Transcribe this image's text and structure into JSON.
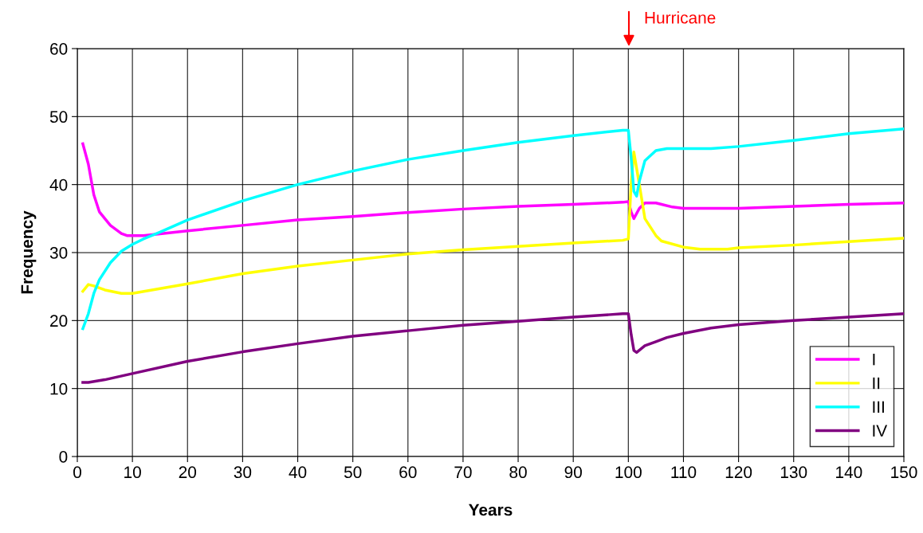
{
  "chart_data": {
    "type": "line",
    "xlabel": "Years",
    "ylabel": "Frequency",
    "xlim": [
      0,
      150
    ],
    "ylim": [
      0,
      60
    ],
    "xticks": [
      0,
      10,
      20,
      30,
      40,
      50,
      60,
      70,
      80,
      90,
      100,
      110,
      120,
      130,
      140,
      150
    ],
    "yticks": [
      0,
      10,
      20,
      30,
      40,
      50,
      60
    ],
    "grid": true,
    "legend": "bottom right",
    "marker": "none",
    "line_style": "solid",
    "annotations": [
      "Hurricane"
    ],
    "series": [
      {
        "name": "I",
        "color": "#ff00ff",
        "x": [
          1,
          2,
          3,
          4,
          6,
          8,
          9,
          12,
          20,
          30,
          40,
          50,
          60,
          70,
          80,
          90,
          99,
          100,
          100.5,
          101,
          102,
          103,
          105,
          108,
          110,
          120,
          130,
          140,
          150
        ],
        "values": [
          46,
          43,
          38.5,
          36,
          34,
          32.8,
          32.5,
          32.5,
          33.2,
          34,
          34.8,
          35.3,
          35.9,
          36.4,
          36.8,
          37.1,
          37.4,
          37.5,
          36,
          35,
          36.5,
          37.3,
          37.3,
          36.7,
          36.5,
          36.5,
          36.8,
          37.1,
          37.3
        ]
      },
      {
        "name": "II",
        "color": "#ffff00",
        "x": [
          1,
          2,
          3,
          5,
          8,
          10,
          15,
          20,
          30,
          40,
          50,
          60,
          70,
          80,
          90,
          99,
          100,
          100.5,
          101,
          102,
          103,
          105,
          106,
          110,
          113,
          118,
          120,
          130,
          140,
          150
        ],
        "values": [
          24.3,
          25.3,
          25.1,
          24.5,
          24,
          24,
          24.7,
          25.4,
          26.9,
          28,
          28.9,
          29.8,
          30.4,
          30.9,
          31.4,
          31.8,
          32,
          40,
          44.8,
          40,
          35,
          32.5,
          31.7,
          30.8,
          30.5,
          30.5,
          30.7,
          31.1,
          31.6,
          32.1
        ]
      },
      {
        "name": "III",
        "color": "#00ffff",
        "x": [
          1,
          2,
          3,
          4,
          6,
          8,
          10,
          12,
          15,
          20,
          30,
          40,
          50,
          60,
          70,
          80,
          90,
          99,
          100,
          100.5,
          101,
          101.5,
          102,
          103,
          105,
          107,
          110,
          115,
          120,
          130,
          140,
          150
        ],
        "values": [
          18.8,
          21,
          24,
          26,
          28.5,
          30.2,
          31.2,
          32,
          33,
          34.8,
          37.6,
          40,
          42,
          43.7,
          45,
          46.2,
          47.2,
          48,
          48,
          44,
          39,
          38.3,
          40.5,
          43.5,
          45,
          45.3,
          45.3,
          45.3,
          45.6,
          46.5,
          47.5,
          48.2
        ]
      },
      {
        "name": "IV",
        "color": "#800080",
        "x": [
          1,
          2,
          5,
          10,
          20,
          30,
          40,
          50,
          60,
          70,
          80,
          90,
          99,
          100,
          100.5,
          101,
          101.5,
          103,
          105,
          107,
          110,
          115,
          120,
          130,
          140,
          150
        ],
        "values": [
          10.9,
          10.9,
          11.3,
          12.2,
          14,
          15.4,
          16.6,
          17.7,
          18.5,
          19.3,
          19.9,
          20.5,
          21,
          21,
          18,
          15.6,
          15.3,
          16.3,
          16.9,
          17.5,
          18.1,
          18.9,
          19.4,
          20,
          20.5,
          21
        ]
      }
    ]
  }
}
